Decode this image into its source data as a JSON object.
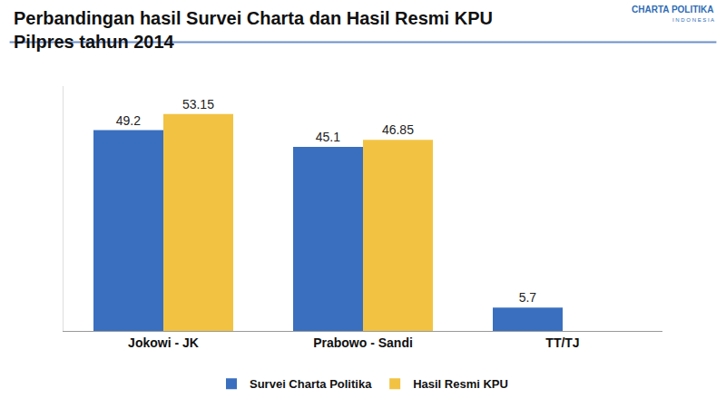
{
  "chart_data": {
    "type": "bar",
    "title": [
      "Perbandingan hasil Survei Charta dan Hasil Resmi KPU",
      "Pilpres tahun 2014"
    ],
    "logo": {
      "name": "CHARTA POLITIKA",
      "subtitle": "INDONESIA"
    },
    "categories": [
      "Jokowi - JK",
      "Prabowo - Sandi",
      "TT/TJ"
    ],
    "series": [
      {
        "name": "Survei Charta Politika",
        "color": "#3a6fbf",
        "values": [
          49.2,
          45.1,
          5.7
        ]
      },
      {
        "name": "Hasil Resmi KPU",
        "color": "#f2c343",
        "values": [
          53.15,
          46.85,
          null
        ]
      }
    ],
    "ylim": [
      0,
      60
    ],
    "grid": false,
    "legend": "bottom",
    "data_labels": true,
    "tick_labels": "x"
  }
}
